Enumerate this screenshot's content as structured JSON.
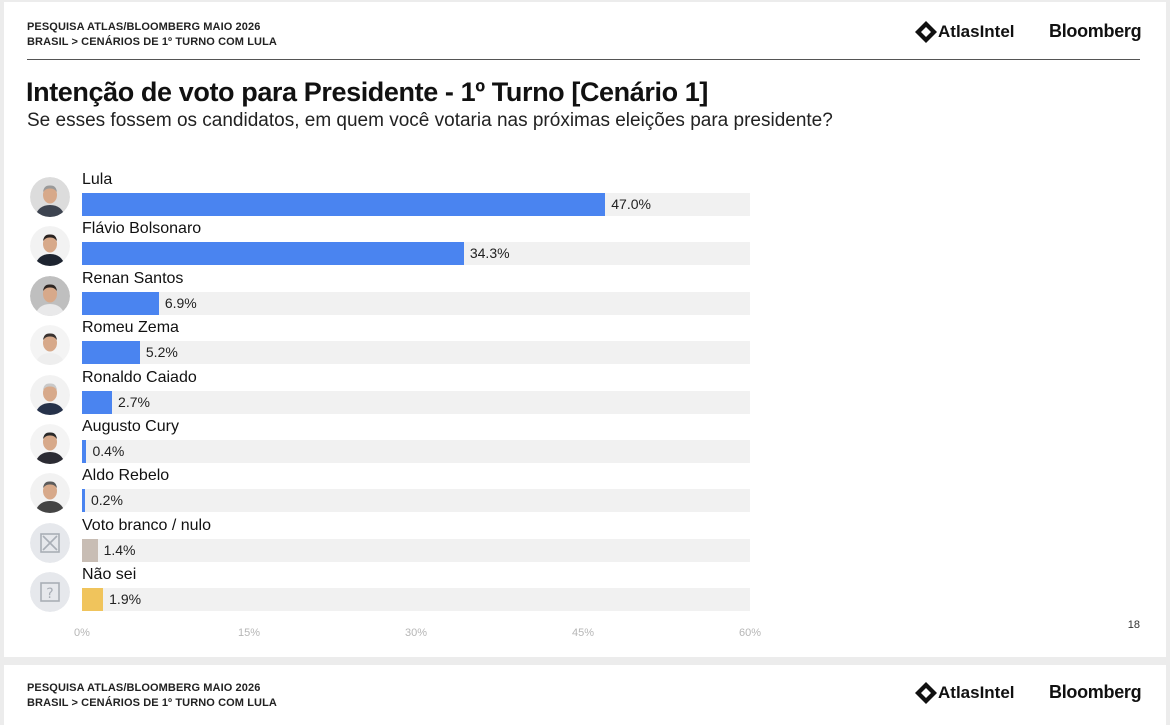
{
  "header": {
    "survey_line": "PESQUISA ATLAS/BLOOMBERG MAIO 2026",
    "breadcrumb_line": "BRASIL > CENÁRIOS DE 1º TURNO COM LULA",
    "brand_atlas": "AtlasIntel",
    "brand_bloomberg": "Bloomberg"
  },
  "page_number": "18",
  "colors": {
    "candidate_bar": "#4a84f0",
    "blank_null_bar": "#c8bdb4",
    "dont_know_bar": "#f0c45c",
    "track": "#f1f1f1"
  },
  "chart_data": {
    "type": "bar",
    "orientation": "horizontal",
    "title": "Intenção de voto para Presidente - 1º Turno [Cenário 1]",
    "subtitle": "Se esses fossem os candidatos, em quem você votaria nas próximas eleições para presidente?",
    "xlim": [
      0,
      60
    ],
    "ticks": [
      "0%",
      "15%",
      "30%",
      "45%",
      "60%"
    ],
    "tick_values": [
      0,
      15,
      30,
      45,
      60
    ],
    "grid": false,
    "categories": [
      "Lula",
      "Flávio Bolsonaro",
      "Renan Santos",
      "Romeu Zema",
      "Ronaldo Caiado",
      "Augusto Cury",
      "Aldo Rebelo",
      "Voto branco / nulo",
      "Não sei"
    ],
    "values": [
      47.0,
      34.3,
      6.9,
      5.2,
      2.7,
      0.4,
      0.2,
      1.4,
      1.9
    ],
    "labels": [
      "47.0%",
      "34.3%",
      "6.9%",
      "5.2%",
      "2.7%",
      "0.4%",
      "0.2%",
      "1.4%",
      "1.9%"
    ],
    "kinds": [
      "candidate",
      "candidate",
      "candidate",
      "candidate",
      "candidate",
      "candidate",
      "candidate",
      "blank",
      "unknown"
    ],
    "avatar_icons": [
      "person-photo-icon",
      "person-photo-icon",
      "person-photo-icon",
      "person-photo-icon",
      "person-photo-icon",
      "person-photo-icon",
      "person-photo-icon",
      "x-box-icon",
      "question-box-icon"
    ]
  }
}
